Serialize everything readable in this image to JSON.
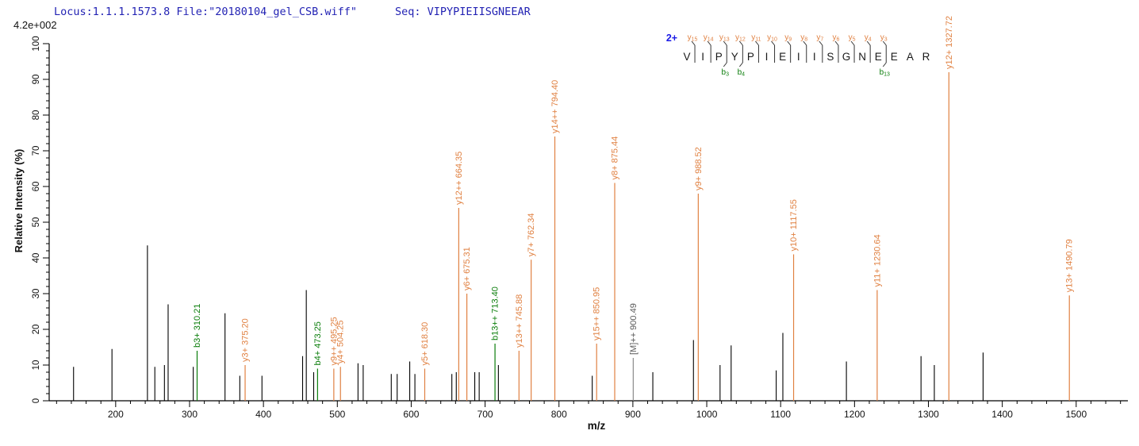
{
  "header": {
    "locus_file": "Locus:1.1.1.1573.8 File:\"20180104_gel_CSB.wiff\"",
    "seq": "Seq: VIPYPIEIISGNEEAR",
    "intensity_scale": "4.2e+002"
  },
  "colors": {
    "header_text": "#2323b4",
    "charge_text": "#1a1ae6",
    "y_ion": "#e08142",
    "b_ion": "#0a7d0a",
    "precursor_line": "#8a8a8a",
    "precursor_text": "#5a5a5a",
    "peak": "#000000",
    "axis": "#000000",
    "residue_text": "#1a1a1a",
    "mark_line": "#333333"
  },
  "peptide_annotation": {
    "charge_label": "2+",
    "sequence": "VIPYPIEIISGNEEAR",
    "y_ion_marks": [
      {
        "ion": "y",
        "num": "15",
        "gap": 1
      },
      {
        "ion": "y",
        "num": "14",
        "gap": 2
      },
      {
        "ion": "y",
        "num": "13",
        "gap": 3
      },
      {
        "ion": "y",
        "num": "12",
        "gap": 4
      },
      {
        "ion": "y",
        "num": "11",
        "gap": 5
      },
      {
        "ion": "y",
        "num": "10",
        "gap": 6
      },
      {
        "ion": "y",
        "num": "9",
        "gap": 7
      },
      {
        "ion": "y",
        "num": "8",
        "gap": 8
      },
      {
        "ion": "y",
        "num": "7",
        "gap": 9
      },
      {
        "ion": "y",
        "num": "6",
        "gap": 10
      },
      {
        "ion": "y",
        "num": "5",
        "gap": 11
      },
      {
        "ion": "y",
        "num": "4",
        "gap": 12
      },
      {
        "ion": "y",
        "num": "3",
        "gap": 13
      }
    ],
    "b_ion_marks": [
      {
        "ion": "b",
        "num": "3",
        "gap": 3
      },
      {
        "ion": "b",
        "num": "4",
        "gap": 4
      },
      {
        "ion": "b",
        "num": "13",
        "gap": 13
      }
    ]
  },
  "chart_data": {
    "type": "bar",
    "subtype": "ms2-stick-spectrum",
    "title": "",
    "xlabel": "m/z",
    "ylabel": "Relative  Intensity (%)",
    "intensity_scale": "4.2e+002",
    "xlim": [
      110,
      1570
    ],
    "ylim": [
      0,
      100
    ],
    "x_minor_tick_step": 20,
    "y_minor_tick_step": 2,
    "x_ticks": [
      {
        "v": 200,
        "label": "200"
      },
      {
        "v": 300,
        "label": "300"
      },
      {
        "v": 400,
        "label": "400"
      },
      {
        "v": 500,
        "label": "500"
      },
      {
        "v": 600,
        "label": "600"
      },
      {
        "v": 700,
        "label": "700"
      },
      {
        "v": 800,
        "label": "800"
      },
      {
        "v": 900,
        "label": "900"
      },
      {
        "v": 1000,
        "label": "1000"
      },
      {
        "v": 1100,
        "label": "1100"
      },
      {
        "v": 1200,
        "label": "1200"
      },
      {
        "v": 1300,
        "label": "1300"
      },
      {
        "v": 1400,
        "label": "1400"
      },
      {
        "v": 1500,
        "label": "1500"
      }
    ],
    "y_ticks": [
      {
        "v": 0,
        "label": "0"
      },
      {
        "v": 10,
        "label": "10"
      },
      {
        "v": 20,
        "label": "20"
      },
      {
        "v": 30,
        "label": "30"
      },
      {
        "v": 40,
        "label": "40"
      },
      {
        "v": 50,
        "label": "50"
      },
      {
        "v": 60,
        "label": "60"
      },
      {
        "v": 70,
        "label": "70"
      },
      {
        "v": 80,
        "label": "80"
      },
      {
        "v": 90,
        "label": "90"
      },
      {
        "v": 100,
        "label": "100"
      }
    ],
    "assigned_peaks": [
      {
        "mz": 310.21,
        "intensity": 14,
        "label": "b3+ 310.21",
        "series": "b"
      },
      {
        "mz": 375.2,
        "intensity": 10,
        "label": "y3+ 375.20",
        "series": "y"
      },
      {
        "mz": 473.25,
        "intensity": 9,
        "label": "b4+ 473.25",
        "series": "b"
      },
      {
        "mz": 495.25,
        "intensity": 9,
        "label": "y9++ 495.25",
        "series": "y"
      },
      {
        "mz": 504.25,
        "intensity": 9.5,
        "label": "y4+ 504.25",
        "series": "y"
      },
      {
        "mz": 618.3,
        "intensity": 9,
        "label": "y5+ 618.30",
        "series": "y"
      },
      {
        "mz": 664.35,
        "intensity": 54,
        "label": "y12++ 664.35",
        "series": "y"
      },
      {
        "mz": 675.31,
        "intensity": 30,
        "label": "y6+ 675.31",
        "series": "y"
      },
      {
        "mz": 713.4,
        "intensity": 16,
        "label": "b13++ 713.40",
        "series": "b"
      },
      {
        "mz": 745.88,
        "intensity": 14,
        "label": "y13++ 745.88",
        "series": "y"
      },
      {
        "mz": 762.34,
        "intensity": 39.5,
        "label": "y7+ 762.34",
        "series": "y"
      },
      {
        "mz": 794.4,
        "intensity": 74,
        "label": "y14++ 794.40",
        "series": "y"
      },
      {
        "mz": 850.95,
        "intensity": 16,
        "label": "y15++ 850.95",
        "series": "y"
      },
      {
        "mz": 875.44,
        "intensity": 61,
        "label": "y8+ 875.44",
        "series": "y"
      },
      {
        "mz": 900.49,
        "intensity": 12,
        "label": "[M]++ 900.49",
        "series": "precursor"
      },
      {
        "mz": 988.52,
        "intensity": 58,
        "label": "y9+ 988.52",
        "series": "y"
      },
      {
        "mz": 1117.55,
        "intensity": 41,
        "label": "y10+ 1117.55",
        "series": "y"
      },
      {
        "mz": 1230.64,
        "intensity": 31,
        "label": "y11+ 1230.64",
        "series": "y"
      },
      {
        "mz": 1327.72,
        "intensity": 92,
        "label": "y12+ 1327.72",
        "series": "y"
      },
      {
        "mz": 1490.79,
        "intensity": 29.5,
        "label": "y13+ 1490.79",
        "series": "y"
      }
    ],
    "unassigned_peaks": [
      [
        143,
        9.5
      ],
      [
        195,
        14.5
      ],
      [
        243,
        43.5
      ],
      [
        253,
        9.5
      ],
      [
        266,
        10
      ],
      [
        271,
        27
      ],
      [
        305,
        9.5
      ],
      [
        348,
        24.5
      ],
      [
        368,
        7
      ],
      [
        398,
        7
      ],
      [
        453,
        12.5
      ],
      [
        458,
        31
      ],
      [
        468,
        8
      ],
      [
        528,
        10.5
      ],
      [
        535,
        10
      ],
      [
        573,
        7.5
      ],
      [
        581,
        7.5
      ],
      [
        598,
        11
      ],
      [
        605,
        7.5
      ],
      [
        655,
        7.5
      ],
      [
        661,
        8
      ],
      [
        686,
        8
      ],
      [
        692,
        8
      ],
      [
        718,
        10
      ],
      [
        845,
        7
      ],
      [
        927,
        8
      ],
      [
        982,
        17
      ],
      [
        1018,
        10
      ],
      [
        1033,
        15.5
      ],
      [
        1094,
        8.5
      ],
      [
        1103,
        19
      ],
      [
        1189,
        11
      ],
      [
        1290,
        12.5
      ],
      [
        1308,
        10
      ],
      [
        1374,
        13.5
      ]
    ]
  }
}
